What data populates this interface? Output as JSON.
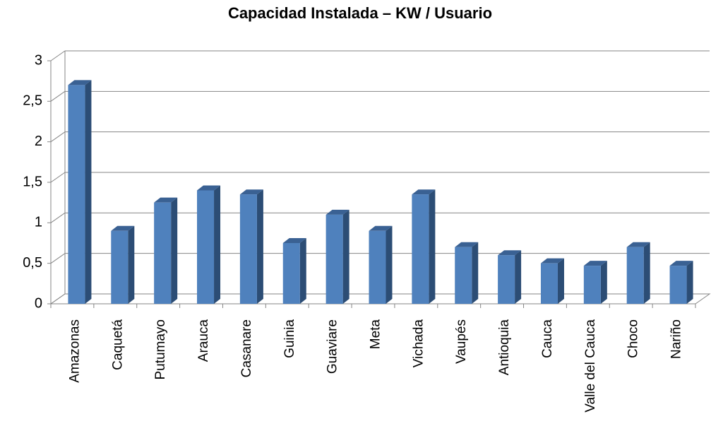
{
  "chart_data": {
    "type": "bar3d",
    "title": "Capacidad Instalada – KW / Usuario",
    "categories": [
      "Amazonas",
      "Caquetá",
      "Putumayo",
      "Arauca",
      "Casanare",
      "Guinia",
      "Guaviare",
      "Meta",
      "Vichada",
      "Vaupés",
      "Antioquia",
      "Cauca",
      "Valle del Cauca",
      "Choco",
      "Nariño"
    ],
    "values": [
      2.7,
      0.9,
      1.25,
      1.4,
      1.35,
      0.75,
      1.1,
      0.9,
      1.35,
      0.7,
      0.6,
      0.5,
      0.47,
      0.7,
      0.47
    ],
    "color": "#4f81bd",
    "ylim": [
      0,
      3
    ],
    "yticks": [
      0,
      {
        "value": 0.5,
        "label": "0,5"
      },
      1,
      {
        "value": 1.5,
        "label": "1,5"
      },
      2,
      {
        "value": 2.5,
        "label": "2,5"
      },
      3
    ],
    "grid": true
  }
}
